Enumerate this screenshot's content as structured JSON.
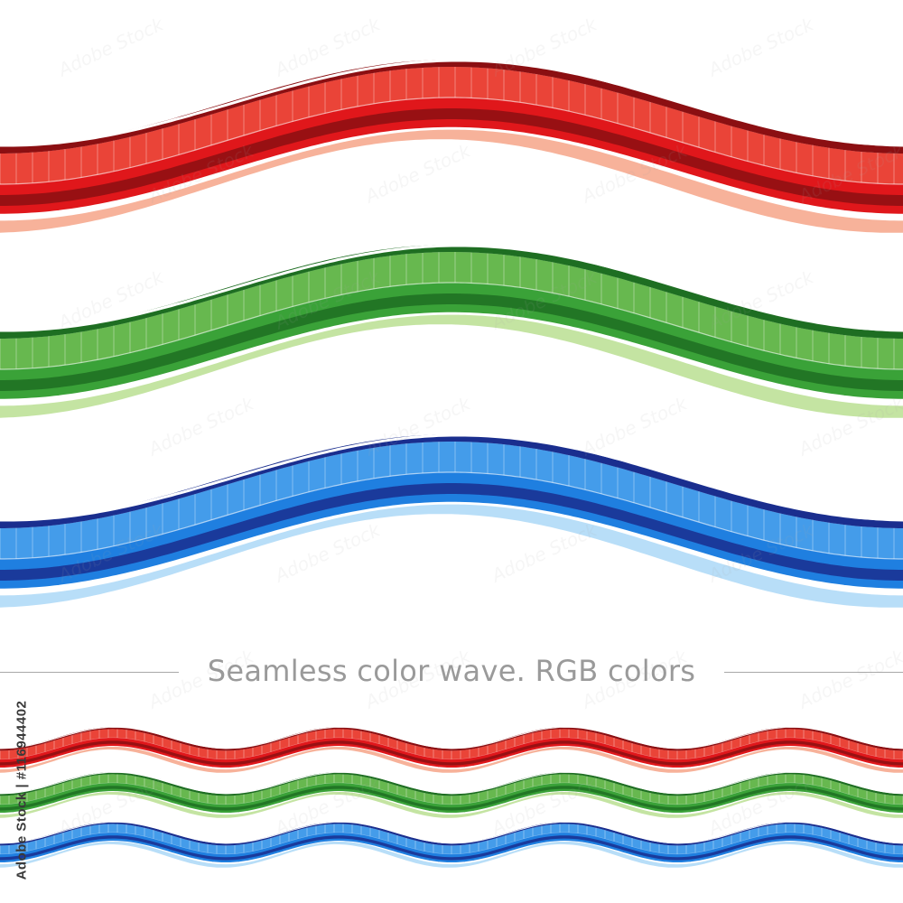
{
  "caption": "Seamless color wave. RGB colors",
  "side_id": "Adobe Stock | #116944402",
  "watermark": "Adobe Stock",
  "colors": {
    "red": {
      "dark": "#8b0f12",
      "mid": "#e0171b",
      "light": "#f36a50",
      "pale": "#f7b29a"
    },
    "green": {
      "dark": "#1e6e22",
      "mid": "#3aa238",
      "light": "#8cca62",
      "pale": "#c4e4a2"
    },
    "blue": {
      "dark": "#1a2e8e",
      "mid": "#1f7fe0",
      "light": "#62b4f2",
      "pale": "#b8def8"
    }
  }
}
